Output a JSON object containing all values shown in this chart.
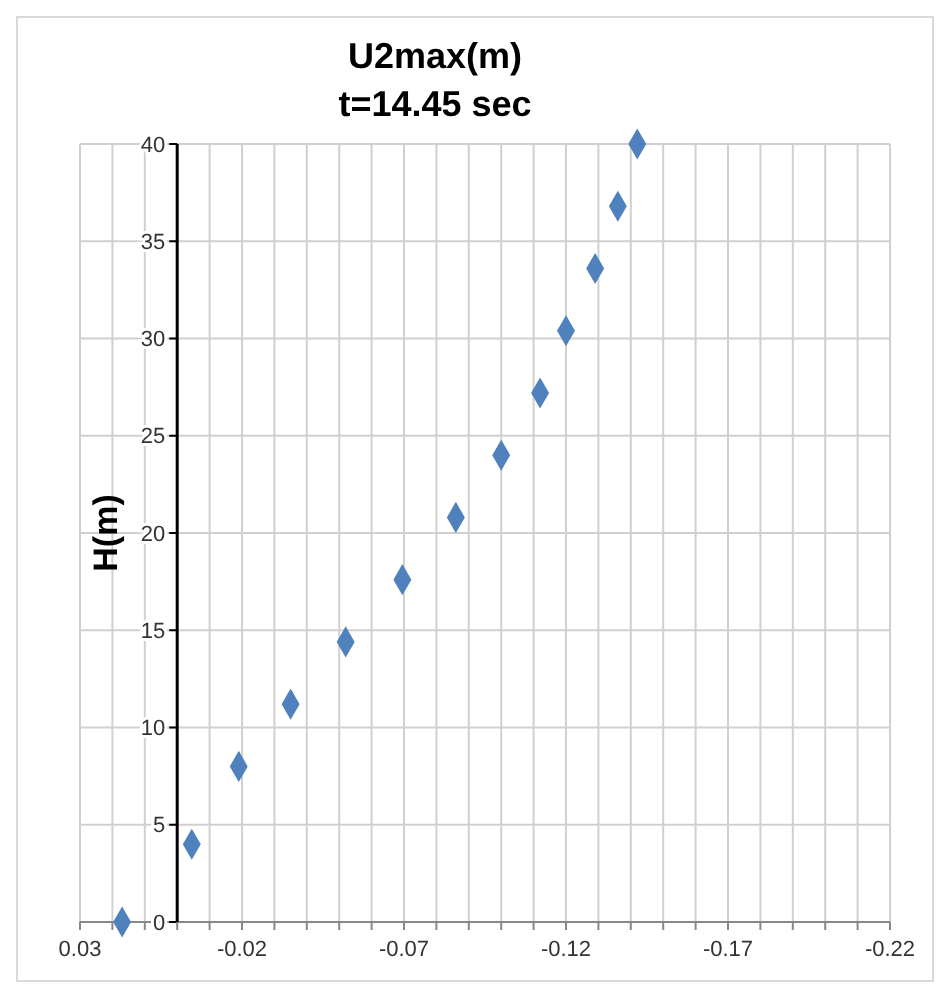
{
  "chart_data": {
    "type": "scatter",
    "title": "U2max(m)",
    "subtitle": "t=14.45 sec",
    "ylabel": "H(m)",
    "x": [
      0.017,
      -0.0045,
      -0.019,
      -0.035,
      -0.052,
      -0.0695,
      -0.086,
      -0.1,
      -0.112,
      -0.12,
      -0.129,
      -0.136,
      -0.142
    ],
    "series": [
      {
        "color": "#4f81bd",
        "values": [
          0,
          4,
          8,
          11.2,
          14.4,
          17.6,
          20.8,
          24,
          27.2,
          30.4,
          33.6,
          36.8,
          40
        ]
      }
    ],
    "xlim": [
      0.03,
      -0.22
    ],
    "xticks": [
      0.03,
      {
        "value": 0.02,
        "label": null
      },
      {
        "value": 0.01,
        "label": null
      },
      {
        "value": 0,
        "label": null
      },
      {
        "value": -0.01,
        "label": null
      },
      -0.02,
      {
        "value": -0.03,
        "label": null
      },
      {
        "value": -0.04,
        "label": null
      },
      {
        "value": -0.05,
        "label": null
      },
      {
        "value": -0.06,
        "label": null
      },
      -0.07,
      {
        "value": -0.08,
        "label": null
      },
      {
        "value": -0.09,
        "label": null
      },
      {
        "value": -0.1,
        "label": null
      },
      {
        "value": -0.11,
        "label": null
      },
      -0.12,
      {
        "value": -0.13,
        "label": null
      },
      {
        "value": -0.14,
        "label": null
      },
      {
        "value": -0.15,
        "label": null
      },
      {
        "value": -0.16,
        "label": null
      },
      -0.17,
      {
        "value": -0.18,
        "label": null
      },
      {
        "value": -0.19,
        "label": null
      },
      {
        "value": -0.2,
        "label": null
      },
      {
        "value": -0.21,
        "label": null
      },
      -0.22
    ],
    "ylim": [
      0,
      40
    ],
    "yticks": [
      0,
      5,
      10,
      15,
      20,
      25,
      30,
      35,
      40
    ],
    "grid": true,
    "marker": "diamond"
  }
}
